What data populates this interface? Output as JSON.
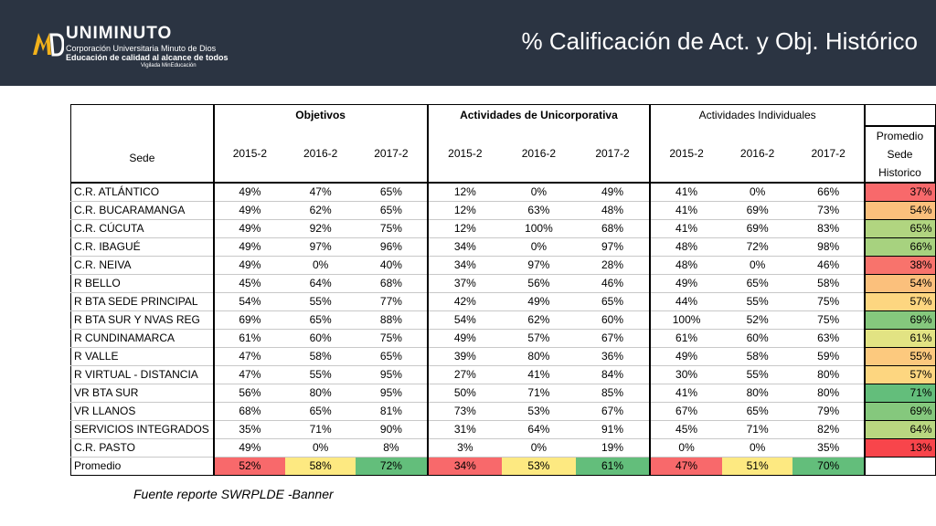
{
  "header": {
    "title": "% Calificación de Act. y Obj. Histórico",
    "logo": {
      "name": "UNIMINUTO",
      "line1": "Corporación Universitaria Minuto de Dios",
      "line2": "Educación de calidad al alcance de todos",
      "line3": "Vigilada MinEducación"
    }
  },
  "colors": {
    "header_bg": "#2b3442",
    "red": "#f8696b",
    "orange": "#fbb579",
    "yellow": "#fde981",
    "light_green": "#b1d580",
    "green": "#63be7b"
  },
  "table": {
    "sede_label": "Sede",
    "groups": [
      "Objetivos",
      "Actividades de Unicorporativa",
      "Actividades Individuales"
    ],
    "years": [
      "2015-2",
      "2016-2",
      "2017-2",
      "2015-2",
      "2016-2",
      "2017-2",
      "2015-2",
      "2016-2",
      "2017-2"
    ],
    "avg_header": [
      "Promedio",
      "Sede",
      "Historico"
    ],
    "rows": [
      {
        "sede": "C.R. ATLÁNTICO",
        "v": [
          "49%",
          "47%",
          "65%",
          "12%",
          "0%",
          "49%",
          "41%",
          "0%",
          "66%"
        ],
        "avg": "37%",
        "avg_color": "#f8696b"
      },
      {
        "sede": "C.R. BUCARAMANGA",
        "v": [
          "49%",
          "62%",
          "65%",
          "12%",
          "63%",
          "48%",
          "41%",
          "69%",
          "73%"
        ],
        "avg": "54%",
        "avg_color": "#fbc07c"
      },
      {
        "sede": "C.R. CÚCUTA",
        "v": [
          "49%",
          "92%",
          "75%",
          "12%",
          "100%",
          "68%",
          "41%",
          "69%",
          "83%"
        ],
        "avg": "65%",
        "avg_color": "#b1d580"
      },
      {
        "sede": "C.R. IBAGUÉ",
        "v": [
          "49%",
          "97%",
          "96%",
          "34%",
          "0%",
          "97%",
          "48%",
          "72%",
          "98%"
        ],
        "avg": "66%",
        "avg_color": "#a7d27f"
      },
      {
        "sede": "C.R. NEIVA",
        "v": [
          "49%",
          "0%",
          "40%",
          "34%",
          "97%",
          "28%",
          "48%",
          "0%",
          "46%"
        ],
        "avg": "38%",
        "avg_color": "#f8736c"
      },
      {
        "sede": "R BELLO",
        "v": [
          "45%",
          "64%",
          "68%",
          "37%",
          "56%",
          "46%",
          "49%",
          "65%",
          "58%"
        ],
        "avg": "54%",
        "avg_color": "#fbc07c"
      },
      {
        "sede": "R BTA SEDE PRINCIPAL",
        "v": [
          "54%",
          "55%",
          "77%",
          "42%",
          "49%",
          "65%",
          "44%",
          "55%",
          "75%"
        ],
        "avg": "57%",
        "avg_color": "#fdd680"
      },
      {
        "sede": "R BTA SUR Y NVAS REG",
        "v": [
          "69%",
          "65%",
          "88%",
          "54%",
          "62%",
          "60%",
          "100%",
          "52%",
          "75%"
        ],
        "avg": "69%",
        "avg_color": "#85c87d"
      },
      {
        "sede": "R CUNDINAMARCA",
        "v": [
          "61%",
          "60%",
          "75%",
          "49%",
          "57%",
          "67%",
          "61%",
          "60%",
          "63%"
        ],
        "avg": "61%",
        "avg_color": "#e2e383"
      },
      {
        "sede": "R VALLE",
        "v": [
          "47%",
          "58%",
          "65%",
          "39%",
          "80%",
          "36%",
          "49%",
          "58%",
          "59%"
        ],
        "avg": "55%",
        "avg_color": "#fcc97e"
      },
      {
        "sede": "R VIRTUAL - DISTANCIA",
        "v": [
          "47%",
          "55%",
          "95%",
          "27%",
          "41%",
          "84%",
          "30%",
          "55%",
          "80%"
        ],
        "avg": "57%",
        "avg_color": "#fdd680"
      },
      {
        "sede": "VR BTA SUR",
        "v": [
          "56%",
          "80%",
          "95%",
          "50%",
          "71%",
          "85%",
          "41%",
          "80%",
          "80%"
        ],
        "avg": "71%",
        "avg_color": "#63be7b"
      },
      {
        "sede": "VR LLANOS",
        "v": [
          "68%",
          "65%",
          "81%",
          "73%",
          "53%",
          "67%",
          "67%",
          "65%",
          "79%"
        ],
        "avg": "69%",
        "avg_color": "#85c87d"
      },
      {
        "sede": "SERVICIOS INTEGRADOS",
        "v": [
          "35%",
          "71%",
          "90%",
          "31%",
          "64%",
          "91%",
          "45%",
          "71%",
          "82%"
        ],
        "avg": "64%",
        "avg_color": "#b9d780"
      },
      {
        "sede": "C.R. PASTO",
        "v": [
          "49%",
          "0%",
          "8%",
          "3%",
          "0%",
          "19%",
          "0%",
          "0%",
          "35%"
        ],
        "avg": "13%",
        "avg_color": "#f8454b"
      }
    ],
    "promedio": {
      "label": "Promedio",
      "v": [
        "52%",
        "58%",
        "72%",
        "34%",
        "53%",
        "61%",
        "47%",
        "51%",
        "70%"
      ],
      "colors": [
        "#f8696b",
        "#fde981",
        "#63be7b",
        "#f8696b",
        "#fde981",
        "#63be7b",
        "#f8696b",
        "#fde981",
        "#63be7b"
      ]
    }
  },
  "source": "Fuente reporte SWRPLDE -Banner"
}
